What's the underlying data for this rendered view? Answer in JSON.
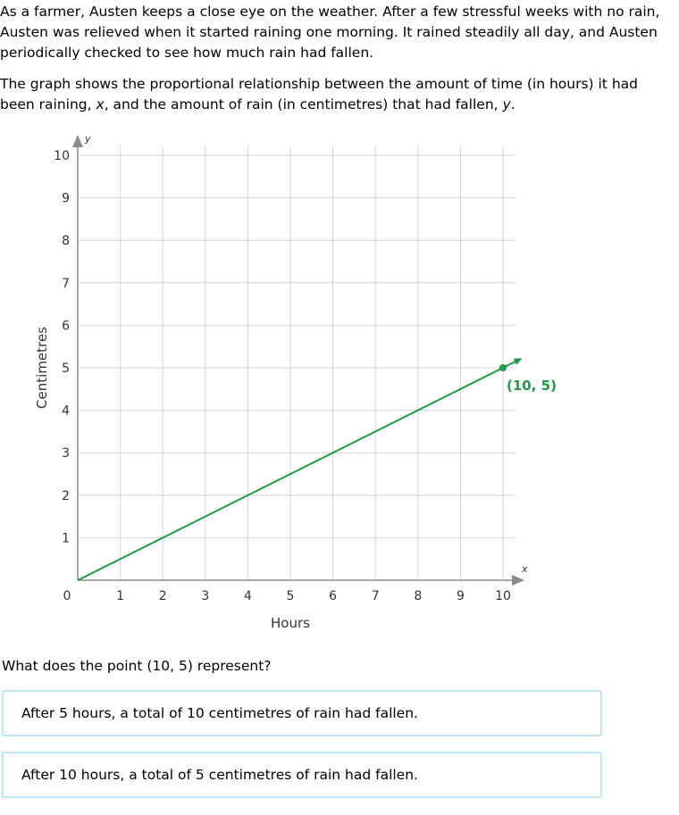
{
  "intro": {
    "p1": "As a farmer, Austen keeps a close eye on the weather. After a few stressful weeks with no rain, Austen was relieved when it started raining one morning. It rained steadily all day, and Austen periodically checked to see how much rain had fallen.",
    "p2_before_x": "The graph shows the proportional relationship between the amount of time (in hours) it had been raining, ",
    "p2_x": "x",
    "p2_middle": ", and the amount of rain (in centimetres) that had fallen, ",
    "p2_y": "y",
    "p2_end": "."
  },
  "chart_data": {
    "type": "line",
    "xlabel": "Hours",
    "ylabel": "Centimetres",
    "x_axis_var": "x",
    "y_axis_var": "y",
    "xlim": [
      0,
      10
    ],
    "ylim": [
      0,
      10
    ],
    "x_ticks": [
      0,
      1,
      2,
      3,
      4,
      5,
      6,
      7,
      8,
      9,
      10
    ],
    "y_ticks": [
      0,
      1,
      2,
      3,
      4,
      5,
      6,
      7,
      8,
      9,
      10
    ],
    "grid": true,
    "series": [
      {
        "x": [
          0,
          10
        ],
        "y": [
          0,
          5
        ],
        "color": "#1e9b48"
      }
    ],
    "highlight_point": {
      "x": 10,
      "y": 5,
      "label": "(10, 5)",
      "color": "#1e9b48"
    }
  },
  "question": "What does the point (10, 5) represent?",
  "choices": [
    "After 5 hours, a total of 10 centimetres of rain had fallen.",
    "After 10 hours, a total of 5 centimetres of rain had fallen."
  ],
  "colors": {
    "line": "#1e9b48",
    "grid": "#d4d4d4",
    "axis": "#8c8c8c",
    "choice_border": "#bfe6f5"
  }
}
